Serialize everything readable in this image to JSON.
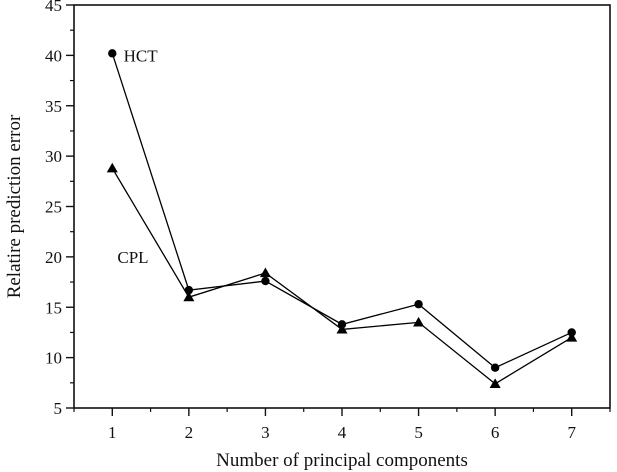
{
  "chart_data": {
    "type": "line",
    "xlabel": "Number of principal components",
    "ylabel": "Relatire prediction error",
    "x": [
      1,
      2,
      3,
      4,
      5,
      6,
      7
    ],
    "xlim": [
      0.5,
      7.5
    ],
    "ylim": [
      5,
      45
    ],
    "yticks": [
      5,
      10,
      15,
      20,
      25,
      30,
      35,
      40,
      45
    ],
    "grid": false,
    "series": [
      {
        "name": "HCT",
        "marker": "circle",
        "color": "#000000",
        "values": [
          40.2,
          16.7,
          17.6,
          13.3,
          15.3,
          9.0,
          12.5
        ]
      },
      {
        "name": "CPL",
        "marker": "triangle",
        "color": "#000000",
        "values": [
          28.8,
          16.0,
          18.4,
          12.8,
          13.5,
          7.4,
          12.0
        ]
      }
    ]
  }
}
